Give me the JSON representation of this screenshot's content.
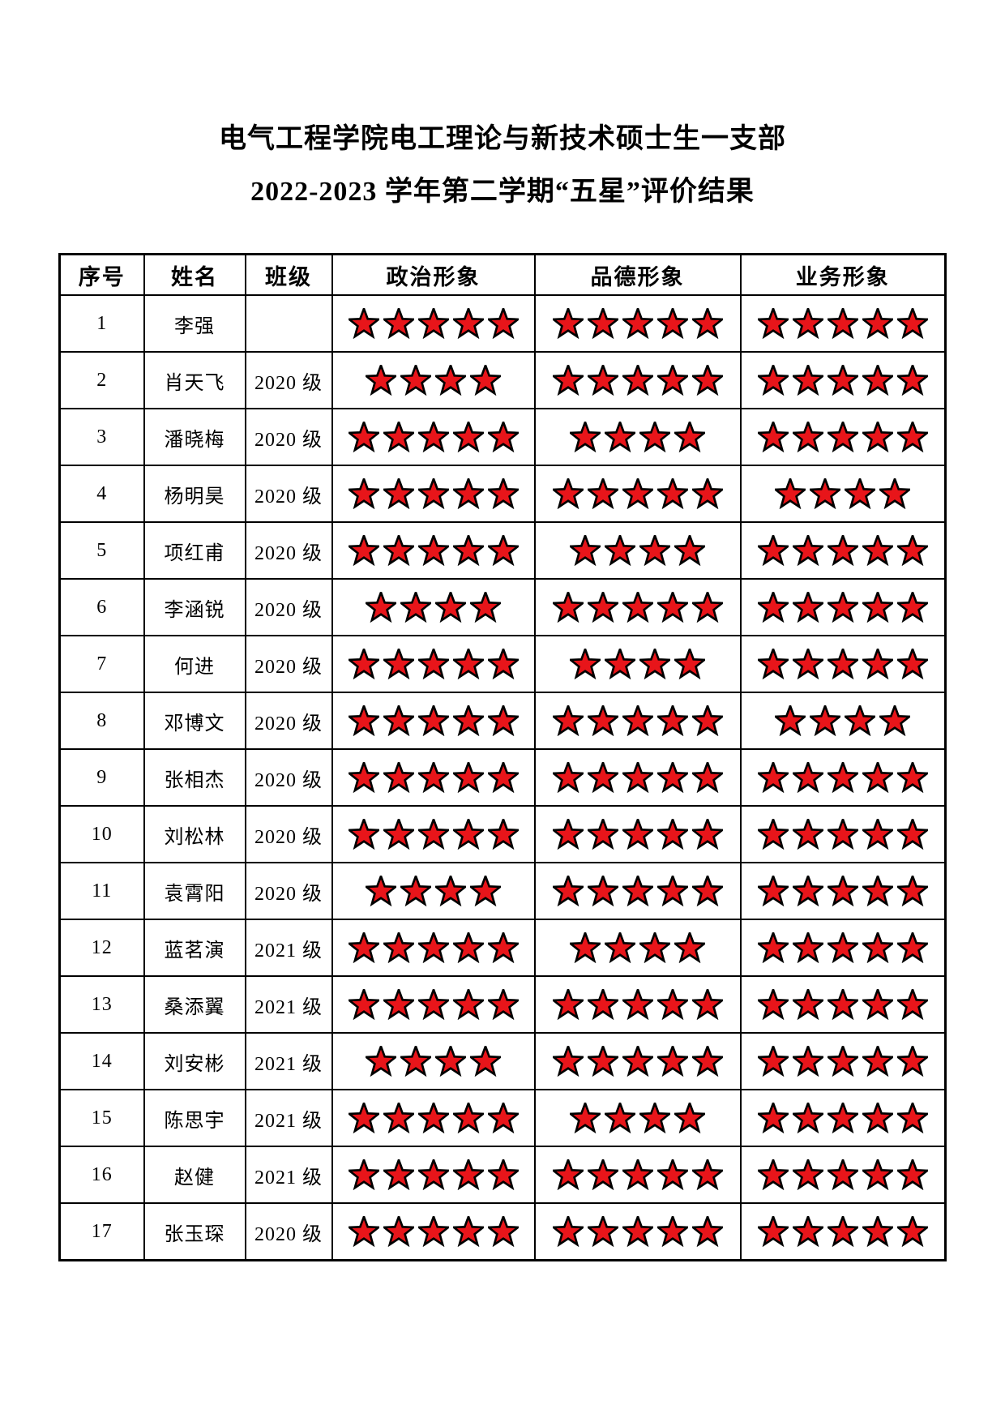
{
  "page": {
    "title_line1": "电气工程学院电工理论与新技术硕士生一支部",
    "title_line2": "2022-2023 学年第二学期“五星”评价结果"
  },
  "star": {
    "fill": "#e8151a",
    "outline": "#000000",
    "max": 5
  },
  "table": {
    "columns": [
      {
        "key": "no",
        "label": "序号",
        "type": "text"
      },
      {
        "key": "name",
        "label": "姓名",
        "type": "text"
      },
      {
        "key": "class",
        "label": "班级",
        "type": "text"
      },
      {
        "key": "political",
        "label": "政治形象",
        "type": "stars"
      },
      {
        "key": "moral",
        "label": "品德形象",
        "type": "stars"
      },
      {
        "key": "professional",
        "label": "业务形象",
        "type": "stars"
      }
    ],
    "rows": [
      {
        "no": "1",
        "name": "李强",
        "class": "",
        "political": 5,
        "moral": 5,
        "professional": 5
      },
      {
        "no": "2",
        "name": "肖天飞",
        "class": "2020 级",
        "political": 4,
        "moral": 5,
        "professional": 5
      },
      {
        "no": "3",
        "name": "潘晓梅",
        "class": "2020 级",
        "political": 5,
        "moral": 4,
        "professional": 5
      },
      {
        "no": "4",
        "name": "杨明昊",
        "class": "2020 级",
        "political": 5,
        "moral": 5,
        "professional": 4
      },
      {
        "no": "5",
        "name": "项红甫",
        "class": "2020 级",
        "political": 5,
        "moral": 4,
        "professional": 5
      },
      {
        "no": "6",
        "name": "李涵锐",
        "class": "2020 级",
        "political": 4,
        "moral": 5,
        "professional": 5
      },
      {
        "no": "7",
        "name": "何进",
        "class": "2020 级",
        "political": 5,
        "moral": 4,
        "professional": 5
      },
      {
        "no": "8",
        "name": "邓博文",
        "class": "2020 级",
        "political": 5,
        "moral": 5,
        "professional": 4
      },
      {
        "no": "9",
        "name": "张相杰",
        "class": "2020 级",
        "political": 5,
        "moral": 5,
        "professional": 5
      },
      {
        "no": "10",
        "name": "刘松林",
        "class": "2020 级",
        "political": 5,
        "moral": 5,
        "professional": 5
      },
      {
        "no": "11",
        "name": "袁霄阳",
        "class": "2020 级",
        "political": 4,
        "moral": 5,
        "professional": 5
      },
      {
        "no": "12",
        "name": "蓝茗演",
        "class": "2021 级",
        "political": 5,
        "moral": 4,
        "professional": 5
      },
      {
        "no": "13",
        "name": "桑添翼",
        "class": "2021 级",
        "political": 5,
        "moral": 5,
        "professional": 5
      },
      {
        "no": "14",
        "name": "刘安彬",
        "class": "2021 级",
        "political": 4,
        "moral": 5,
        "professional": 5
      },
      {
        "no": "15",
        "name": "陈思宇",
        "class": "2021 级",
        "political": 5,
        "moral": 4,
        "professional": 5
      },
      {
        "no": "16",
        "name": "赵健",
        "class": "2021 级",
        "political": 5,
        "moral": 5,
        "professional": 5
      },
      {
        "no": "17",
        "name": "张玉琛",
        "class": "2020 级",
        "political": 5,
        "moral": 5,
        "professional": 5
      }
    ]
  }
}
